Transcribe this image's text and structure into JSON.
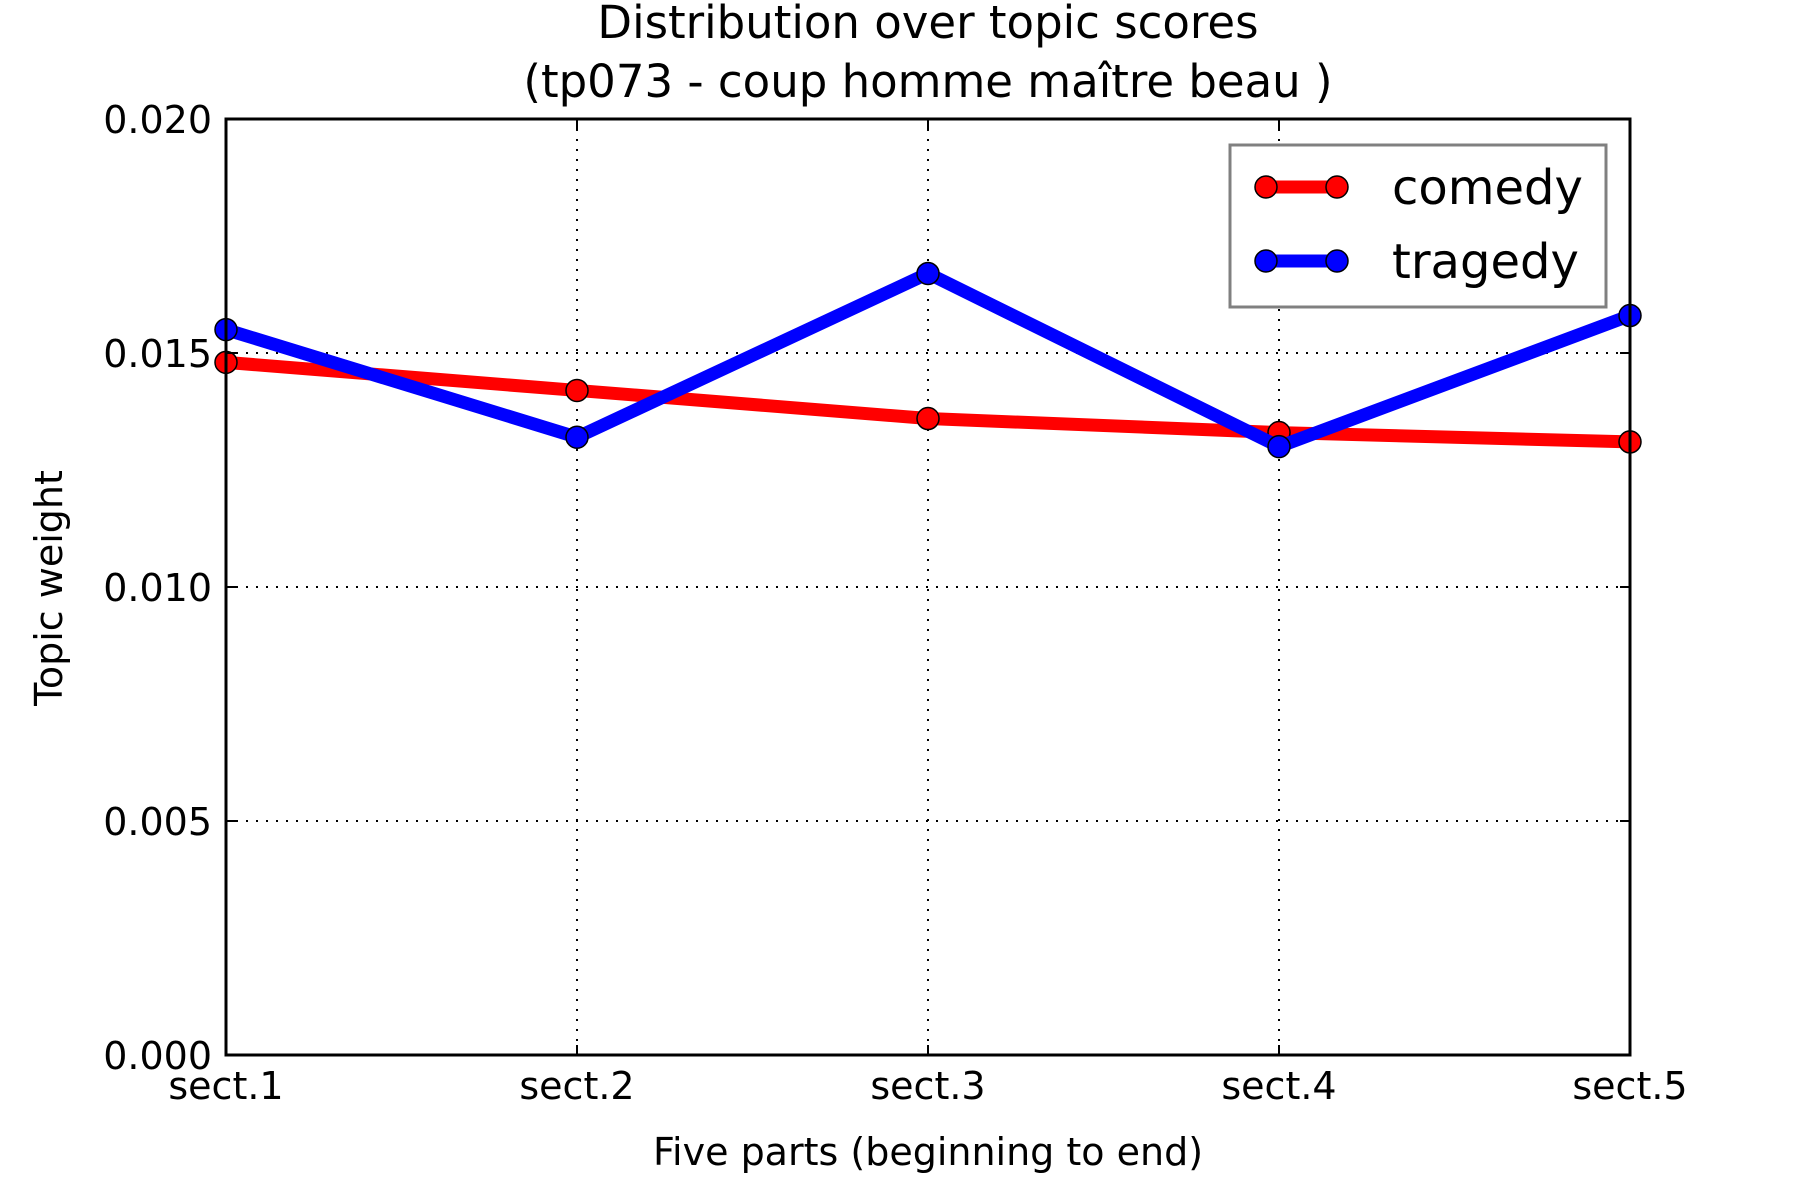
{
  "chart_data": {
    "type": "line",
    "title": "Distribution over topic scores",
    "subtitle": "(tp073 - coup homme maître beau )",
    "xlabel": "Five parts (beginning to end)",
    "ylabel": "Topic weight",
    "categories": [
      "sect.1",
      "sect.2",
      "sect.3",
      "sect.4",
      "sect.5"
    ],
    "ylim": [
      0.0,
      0.02
    ],
    "yticks": [
      0.0,
      0.005,
      0.01,
      0.015,
      0.02
    ],
    "ytick_labels": [
      "0.000",
      "0.005",
      "0.010",
      "0.015",
      "0.020"
    ],
    "grid": true,
    "legend_position": "top-right",
    "series": [
      {
        "name": "comedy",
        "color": "#ff0000",
        "values": [
          0.0148,
          0.0142,
          0.0136,
          0.0133,
          0.0131
        ]
      },
      {
        "name": "tragedy",
        "color": "#0000ff",
        "values": [
          0.0155,
          0.0132,
          0.0167,
          0.013,
          0.0158
        ]
      }
    ]
  }
}
